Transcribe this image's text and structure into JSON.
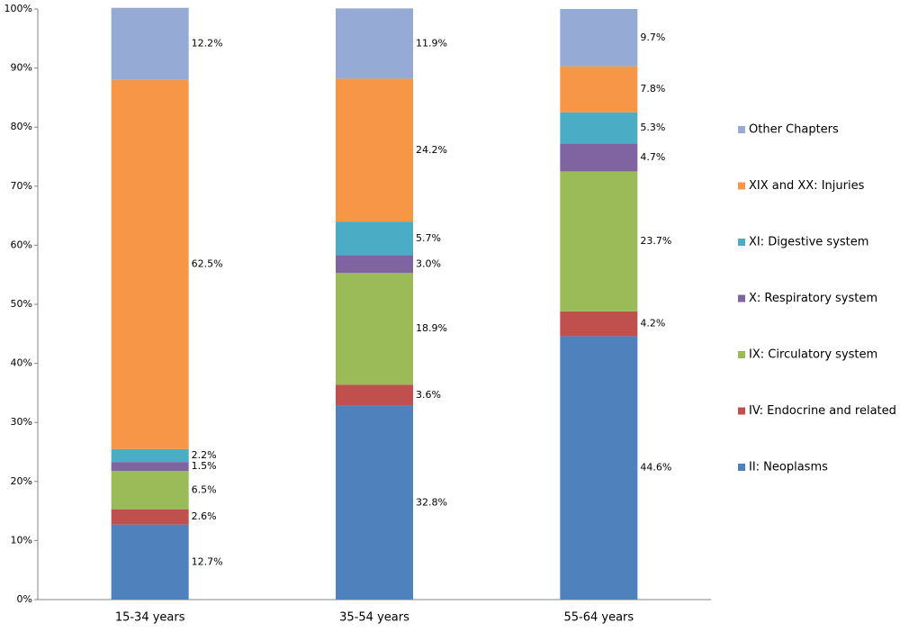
{
  "chart_data": {
    "type": "stacked_bar",
    "categories": [
      "15-34 years",
      "35-54 years",
      "55-64 years"
    ],
    "series": [
      {
        "name": "II: Neoplasms",
        "color": "#4f81bd",
        "values": [
          12.7,
          32.8,
          44.6
        ],
        "value_labels": [
          "12.7%",
          "32.8%",
          "44.6%"
        ]
      },
      {
        "name": "IV: Endocrine and related",
        "color": "#c0504d",
        "values": [
          2.6,
          3.6,
          4.2
        ],
        "value_labels": [
          "2.6%",
          "3.6%",
          "4.2%"
        ]
      },
      {
        "name": "IX: Circulatory system",
        "color": "#9bbb59",
        "values": [
          6.5,
          18.9,
          23.7
        ],
        "value_labels": [
          "6.5%",
          "18.9%",
          "23.7%"
        ]
      },
      {
        "name": "X: Respiratory system",
        "color": "#8064a2",
        "values": [
          1.5,
          3.0,
          4.7
        ],
        "value_labels": [
          "1.5%",
          "3.0%",
          "4.7%"
        ]
      },
      {
        "name": "XI: Digestive system",
        "color": "#4bacc6",
        "values": [
          2.2,
          5.7,
          5.3
        ],
        "value_labels": [
          "2.2%",
          "5.7%",
          "5.3%"
        ]
      },
      {
        "name": "XIX and XX: Injuries",
        "color": "#f79646",
        "values": [
          62.5,
          24.2,
          7.8
        ],
        "value_labels": [
          "62.5%",
          "24.2%",
          "7.8%"
        ]
      },
      {
        "name": "Other Chapters",
        "color": "#95abd5",
        "values": [
          12.2,
          11.9,
          9.7
        ],
        "value_labels": [
          "12.2%",
          "11.9%",
          "9.7%"
        ]
      }
    ],
    "ylim": [
      0,
      100
    ],
    "yticks": [
      {
        "value": 0,
        "label": "0%"
      },
      {
        "value": 10,
        "label": "10%"
      },
      {
        "value": 20,
        "label": "20%"
      },
      {
        "value": 30,
        "label": "30%"
      },
      {
        "value": 40,
        "label": "40%"
      },
      {
        "value": 50,
        "label": "50%"
      },
      {
        "value": 60,
        "label": "60%"
      },
      {
        "value": 70,
        "label": "70%"
      },
      {
        "value": 80,
        "label": "80%"
      },
      {
        "value": 90,
        "label": "90%"
      },
      {
        "value": 100,
        "label": "100%"
      }
    ],
    "grid": false,
    "legend": "right"
  }
}
